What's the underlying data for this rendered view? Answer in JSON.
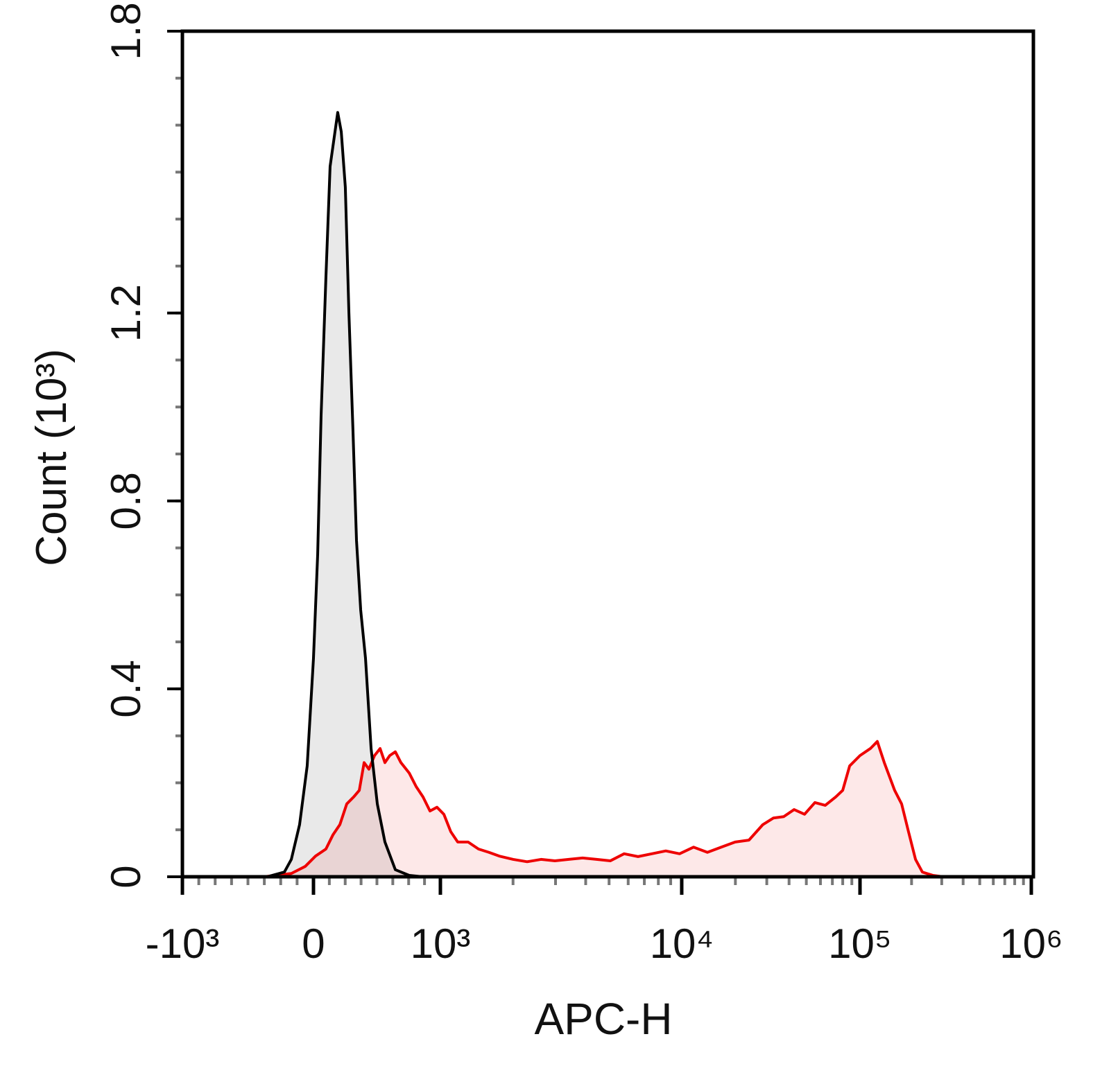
{
  "chart_data": {
    "type": "histogram-overlay",
    "x_label": "APC-H",
    "y_label": "Count (10³)",
    "xscale": "biexponential",
    "xlim": [
      -1000,
      1000000
    ],
    "xticks": [
      {
        "value": -1000,
        "label": "-10³"
      },
      0,
      {
        "value": 1000,
        "label": "10³"
      },
      {
        "value": 10000,
        "label": "10⁴"
      },
      {
        "value": 100000,
        "label": "10⁵"
      },
      {
        "value": 1000000,
        "label": "10⁶"
      }
    ],
    "ylim": [
      0,
      1.8
    ],
    "yticks": [
      0,
      0.4,
      0.8,
      1.2,
      1.8
    ],
    "series": [
      {
        "color": "#000000",
        "fill": "#e9e9e9",
        "x": [
          -1000,
          -354,
          -222,
          -169,
          -106,
          -48,
          0,
          33,
          60,
          98,
          131,
          191,
          219,
          251,
          279,
          311,
          339,
          372,
          410,
          454,
          503,
          563,
          645,
          754,
          863
        ],
        "values": [
          0,
          0,
          0.01,
          0.037,
          0.111,
          0.236,
          0.465,
          0.686,
          0.981,
          1.276,
          1.512,
          1.627,
          1.586,
          1.468,
          1.202,
          0.952,
          0.716,
          0.568,
          0.465,
          0.273,
          0.155,
          0.074,
          0.015,
          0.003,
          0
        ]
      },
      {
        "color": "#ee0000",
        "fill": "rgba(238,0,0,0.09)",
        "x": [
          -381,
          -169,
          -63,
          16,
          98,
          153,
          208,
          262,
          317,
          361,
          399,
          437,
          481,
          525,
          563,
          601,
          645,
          689,
          754,
          809,
          863,
          918,
          973,
          1034,
          1104,
          1180,
          1303,
          1439,
          1589,
          1754,
          2003,
          2287,
          2612,
          2981,
          3404,
          3884,
          4436,
          5063,
          5772,
          6592,
          7520,
          8590,
          9795,
          11645,
          13930,
          16670,
          19940,
          23830,
          28510,
          32650,
          37330,
          42700,
          48860,
          55850,
          63830,
          73110,
          79980,
          87500,
          100000,
          115000,
          126200,
          138600,
          159300,
          175000,
          191900,
          210900,
          231200,
          266000,
          306300,
          1000000
        ],
        "values": [
          0,
          0.007,
          0.022,
          0.044,
          0.059,
          0.089,
          0.111,
          0.155,
          0.17,
          0.184,
          0.243,
          0.229,
          0.258,
          0.273,
          0.243,
          0.258,
          0.266,
          0.243,
          0.221,
          0.192,
          0.17,
          0.14,
          0.148,
          0.133,
          0.096,
          0.074,
          0.074,
          0.059,
          0.052,
          0.044,
          0.037,
          0.032,
          0.037,
          0.034,
          0.037,
          0.04,
          0.037,
          0.034,
          0.049,
          0.043,
          0.049,
          0.055,
          0.049,
          0.063,
          0.052,
          0.063,
          0.074,
          0.078,
          0.111,
          0.125,
          0.128,
          0.143,
          0.133,
          0.158,
          0.152,
          0.17,
          0.184,
          0.236,
          0.258,
          0.273,
          0.288,
          0.243,
          0.184,
          0.155,
          0.096,
          0.037,
          0.01,
          0.003,
          0,
          0
        ]
      }
    ]
  }
}
